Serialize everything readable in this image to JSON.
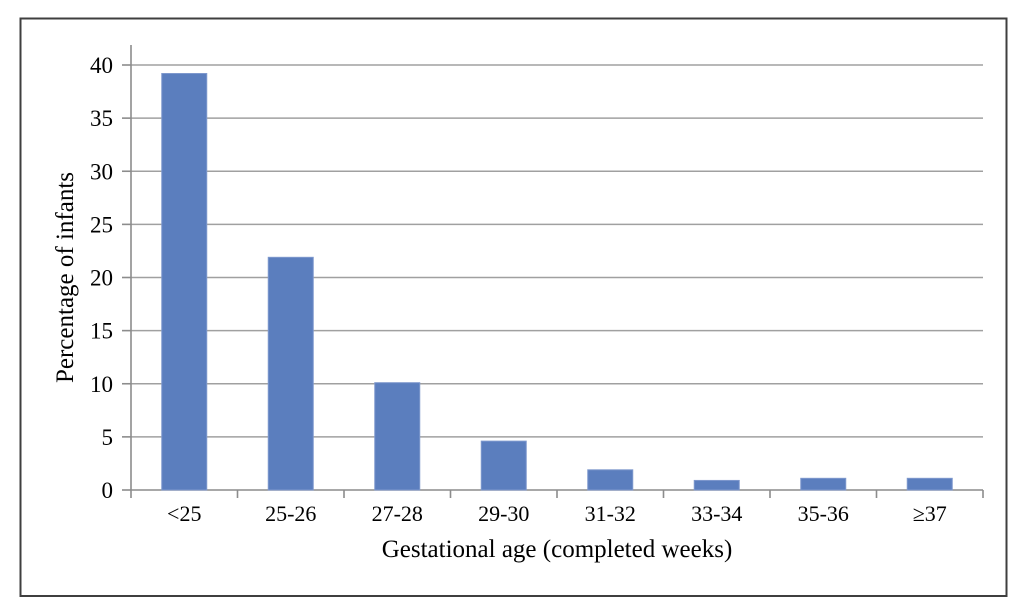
{
  "figure": {
    "background": "#ffffff",
    "border_color": "#3f3f3f"
  },
  "chart_data": {
    "type": "bar",
    "title": "",
    "categories": [
      "<25",
      "25-26",
      "27-28",
      "29-30",
      "31-32",
      "33-34",
      "35-36",
      "≥37"
    ],
    "values": [
      39.2,
      21.9,
      10.1,
      4.6,
      1.9,
      0.9,
      1.1,
      1.1
    ],
    "xlabel": "Gestational age (completed weeks)",
    "ylabel": "Percentage of infants",
    "ylim": [
      0,
      40
    ],
    "yticks": [
      0,
      5,
      10,
      15,
      20,
      25,
      30,
      35,
      40
    ],
    "grid": true,
    "legend": false,
    "bar_color": "#5b7ebe",
    "bar_border_color": "#7e98cd",
    "gridline_color": "#a0a0a0",
    "axis_color": "#8c8c8c",
    "text_color": "#000000"
  }
}
